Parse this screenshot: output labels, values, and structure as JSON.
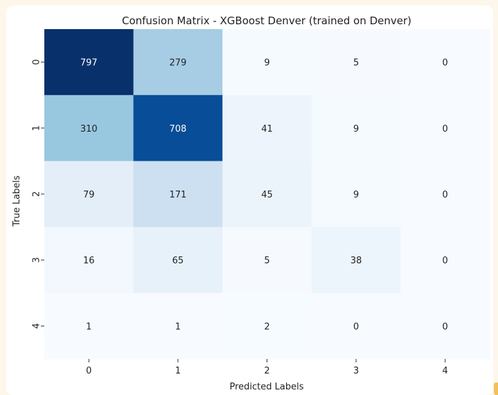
{
  "chart_data": {
    "type": "heatmap",
    "title": "Confusion Matrix - XGBoost Denver (trained on Denver)",
    "xlabel": "Predicted Labels",
    "ylabel": "True Labels",
    "x_categories": [
      "0",
      "1",
      "2",
      "3",
      "4"
    ],
    "y_categories": [
      "0",
      "1",
      "2",
      "3",
      "4"
    ],
    "values": [
      [
        797,
        279,
        9,
        5,
        0
      ],
      [
        310,
        708,
        41,
        9,
        0
      ],
      [
        79,
        171,
        45,
        9,
        0
      ],
      [
        16,
        65,
        5,
        38,
        0
      ],
      [
        1,
        1,
        2,
        0,
        0
      ]
    ],
    "colormap": "Blues",
    "colorbar": false,
    "grid": false
  }
}
